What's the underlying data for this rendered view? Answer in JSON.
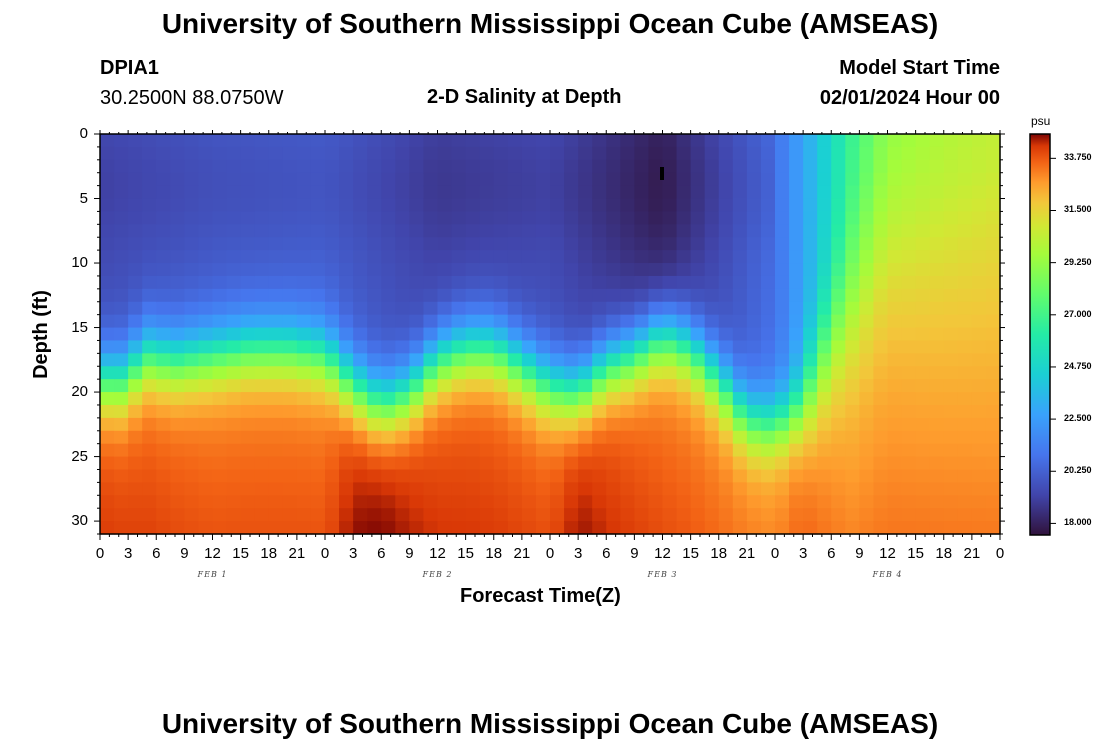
{
  "title_top": "University of Southern Mississippi Ocean Cube (AMSEAS)",
  "title_bottom": "University of Southern Mississippi Ocean Cube (AMSEAS)",
  "station": {
    "id": "DPIA1",
    "coords": "30.2500N  88.0750W"
  },
  "model_start": {
    "label": "Model Start Time",
    "value": "02/01/2024 Hour 00"
  },
  "chart_data": {
    "type": "heatmap",
    "title": "2-D Salinity at Depth",
    "xlabel": "Forecast Time(Z)",
    "ylabel": "Depth (ft)",
    "units": "psu",
    "x_range_hours": [
      0,
      96
    ],
    "x_tick_labels": [
      "0",
      "3",
      "6",
      "9",
      "12",
      "15",
      "18",
      "21",
      "0",
      "3",
      "6",
      "9",
      "12",
      "15",
      "18",
      "21",
      "0",
      "3",
      "6",
      "9",
      "12",
      "15",
      "18",
      "21",
      "0",
      "3",
      "6",
      "9",
      "12",
      "15",
      "18",
      "21",
      "0"
    ],
    "day_labels": [
      "FEB 1",
      "FEB 2",
      "FEB 3",
      "FEB 4"
    ],
    "y_range_ft": [
      0,
      31
    ],
    "y_ticks": [
      0,
      5,
      10,
      15,
      20,
      25,
      30
    ],
    "colorbar": {
      "min": 17.5,
      "max": 34.8,
      "ticks": [
        "33.750",
        "31.500",
        "29.250",
        "27.000",
        "24.750",
        "22.500",
        "20.250",
        "18.000"
      ]
    },
    "halocline_depth_ft": {
      "hours": [
        0,
        3,
        4.5,
        8,
        12,
        16,
        20,
        24,
        27,
        30,
        33,
        36,
        39,
        42,
        45,
        48,
        51,
        54,
        57,
        60,
        63,
        66,
        69,
        72,
        75,
        80,
        84,
        96
      ],
      "depth": [
        19,
        19,
        17,
        17.5,
        17,
        16.5,
        16.5,
        17,
        19.5,
        21,
        20,
        17.5,
        16.5,
        16.5,
        18,
        19.5,
        20,
        18,
        17,
        15.5,
        16.5,
        19,
        22,
        22.5,
        21,
        13,
        7,
        2
      ]
    },
    "surface_salinity_psu": {
      "hours": [
        0,
        12,
        24,
        36,
        48,
        60,
        72,
        76,
        80,
        84,
        96
      ],
      "values": [
        19.5,
        20,
        20.2,
        19.2,
        19.5,
        18.2,
        20.8,
        23.5,
        26.5,
        28.5,
        29.5
      ]
    },
    "bottom_salinity_psu": {
      "hours": [
        0,
        12,
        24,
        27,
        30,
        36,
        48,
        51,
        54,
        60,
        72,
        75,
        80,
        96
      ],
      "values": [
        33.5,
        33,
        33,
        34,
        34.2,
        33.5,
        33.2,
        34,
        33.6,
        33,
        32.5,
        33,
        32,
        31.6
      ]
    }
  }
}
